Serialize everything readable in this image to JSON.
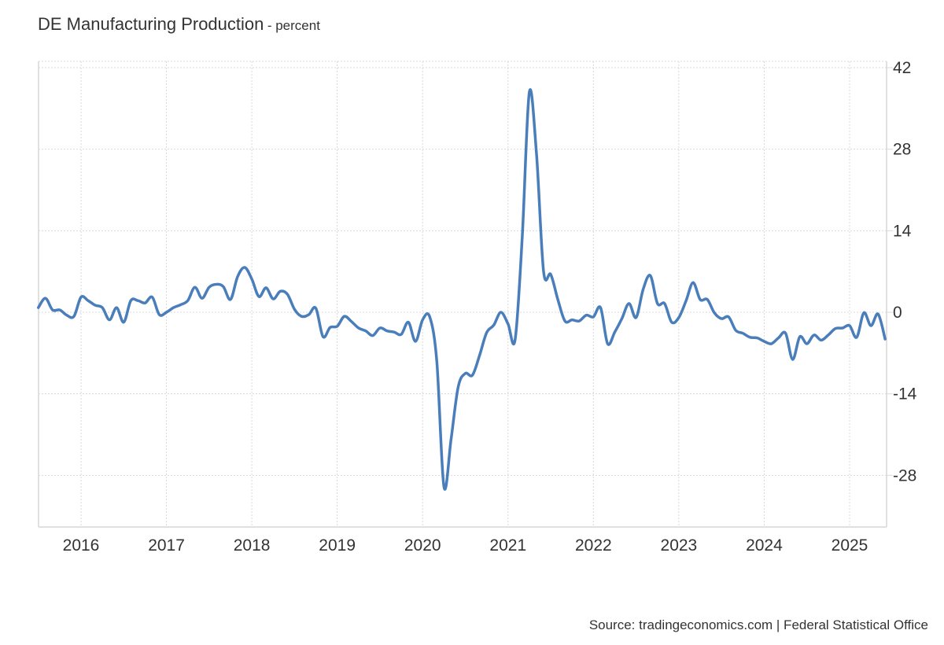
{
  "chart_data": {
    "type": "line",
    "title": "DE Manufacturing Production",
    "subtitle": "percent",
    "xlabel": "",
    "ylabel": "",
    "source": "Source: tradingeconomics.com | Federal Statistical Office",
    "ylim": [
      -36,
      43
    ],
    "yticks": [
      42,
      28,
      14,
      0,
      -14,
      -28
    ],
    "xticks": [
      "2016",
      "2017",
      "2018",
      "2019",
      "2020",
      "2021",
      "2022",
      "2023",
      "2024",
      "2025"
    ],
    "x_start": "2015-07",
    "x_end": "2025-06",
    "grid": true,
    "legend": "none",
    "line_color": "#4a7ebb",
    "series": [
      {
        "name": "DE Manufacturing Production",
        "x": [
          "2015-07",
          "2015-08",
          "2015-09",
          "2015-10",
          "2015-11",
          "2015-12",
          "2016-01",
          "2016-02",
          "2016-03",
          "2016-04",
          "2016-05",
          "2016-06",
          "2016-07",
          "2016-08",
          "2016-09",
          "2016-10",
          "2016-11",
          "2016-12",
          "2017-01",
          "2017-02",
          "2017-03",
          "2017-04",
          "2017-05",
          "2017-06",
          "2017-07",
          "2017-08",
          "2017-09",
          "2017-10",
          "2017-11",
          "2017-12",
          "2018-01",
          "2018-02",
          "2018-03",
          "2018-04",
          "2018-05",
          "2018-06",
          "2018-07",
          "2018-08",
          "2018-09",
          "2018-10",
          "2018-11",
          "2018-12",
          "2019-01",
          "2019-02",
          "2019-03",
          "2019-04",
          "2019-05",
          "2019-06",
          "2019-07",
          "2019-08",
          "2019-09",
          "2019-10",
          "2019-11",
          "2019-12",
          "2020-01",
          "2020-02",
          "2020-03",
          "2020-04",
          "2020-05",
          "2020-06",
          "2020-07",
          "2020-08",
          "2020-09",
          "2020-10",
          "2020-11",
          "2020-12",
          "2021-01",
          "2021-02",
          "2021-03",
          "2021-04",
          "2021-05",
          "2021-06",
          "2021-07",
          "2021-08",
          "2021-09",
          "2021-10",
          "2021-11",
          "2021-12",
          "2022-01",
          "2022-02",
          "2022-03",
          "2022-04",
          "2022-05",
          "2022-06",
          "2022-07",
          "2022-08",
          "2022-09",
          "2022-10",
          "2022-11",
          "2022-12",
          "2023-01",
          "2023-02",
          "2023-03",
          "2023-04",
          "2023-05",
          "2023-06",
          "2023-07",
          "2023-08",
          "2023-09",
          "2023-10",
          "2023-11",
          "2023-12",
          "2024-01",
          "2024-02",
          "2024-03",
          "2024-04",
          "2024-05",
          "2024-06",
          "2024-07",
          "2024-08",
          "2024-09",
          "2024-10",
          "2024-11",
          "2024-12",
          "2025-01",
          "2025-02",
          "2025-03",
          "2025-04",
          "2025-05",
          "2025-06"
        ],
        "values": [
          0.8,
          2.4,
          0.4,
          0.4,
          -0.5,
          -0.7,
          2.6,
          2.0,
          1.2,
          0.8,
          -1.3,
          0.8,
          -1.7,
          2.0,
          2.0,
          1.6,
          2.6,
          -0.4,
          0.0,
          0.8,
          1.3,
          2.0,
          4.3,
          2.4,
          4.3,
          4.8,
          4.4,
          2.2,
          6.1,
          7.7,
          5.7,
          2.7,
          4.2,
          2.3,
          3.6,
          3.1,
          0.5,
          -0.7,
          -0.4,
          0.7,
          -4.2,
          -2.6,
          -2.4,
          -0.7,
          -1.6,
          -2.7,
          -3.2,
          -4.0,
          -2.7,
          -3.2,
          -3.4,
          -3.8,
          -1.7,
          -5.0,
          -1.3,
          -0.8,
          -8.5,
          -30.0,
          -21.8,
          -12.8,
          -10.5,
          -10.8,
          -7.4,
          -3.5,
          -2.2,
          0.0,
          -2.0,
          -4.7,
          13.0,
          37.8,
          27.2,
          7.0,
          6.5,
          2.2,
          -1.5,
          -1.3,
          -1.5,
          -0.5,
          -0.8,
          0.8,
          -5.4,
          -3.4,
          -1.1,
          1.5,
          -0.9,
          4.0,
          6.3,
          1.5,
          1.5,
          -1.7,
          -0.9,
          1.9,
          5.1,
          2.2,
          2.2,
          -0.1,
          -1.1,
          -0.8,
          -3.1,
          -3.6,
          -4.3,
          -4.4,
          -5.0,
          -5.4,
          -4.4,
          -3.6,
          -8.1,
          -4.2,
          -5.4,
          -3.9,
          -4.8,
          -3.9,
          -2.8,
          -2.7,
          -2.3,
          -4.3,
          -0.1,
          -2.3,
          -0.3,
          -4.6
        ]
      }
    ]
  }
}
